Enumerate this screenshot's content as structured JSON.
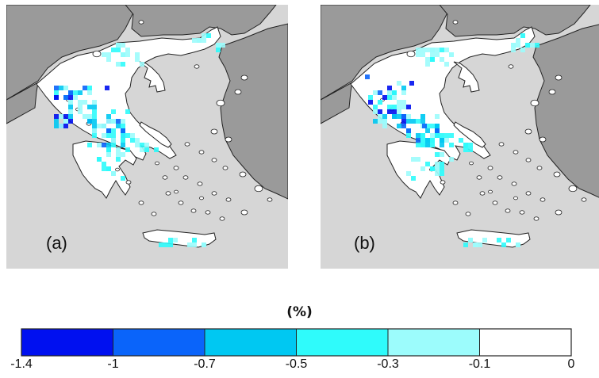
{
  "panels": [
    {
      "id": "a",
      "label": "(a)"
    },
    {
      "id": "b",
      "label": "(b)"
    }
  ],
  "colorbar": {
    "unit": "(%)",
    "ticks": [
      "-1.4",
      "-1",
      "-0.7",
      "-0.5",
      "-0.3",
      "-0.1",
      "0"
    ],
    "bins": [
      {
        "from": -1.4,
        "to": -1.0,
        "color": "#0010f0"
      },
      {
        "from": -1.0,
        "to": -0.7,
        "color": "#0a64fa"
      },
      {
        "from": -0.7,
        "to": -0.5,
        "color": "#00c8f2"
      },
      {
        "from": -0.5,
        "to": -0.3,
        "color": "#2ffbfb"
      },
      {
        "from": -0.3,
        "to": -0.1,
        "color": "#9cfcfc"
      },
      {
        "from": -0.1,
        "to": 0.0,
        "color": "#ffffff"
      }
    ]
  },
  "colors": {
    "sea": "#d6d6d6",
    "neighbor_land": "#9a9a9a",
    "greece_land": "#ffffff",
    "border": "#222222"
  }
}
